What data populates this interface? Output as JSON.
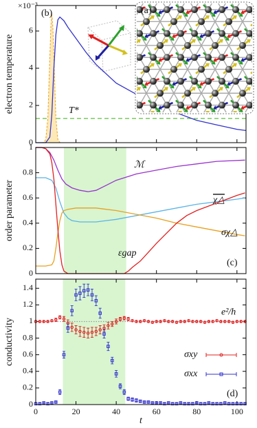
{
  "chart_data": [
    {
      "type": "line",
      "ylabel": "electron temperature",
      "multiplier": "×10⁻³",
      "panel_label": "(b)",
      "inset_label": "(a)",
      "xlim": [
        0,
        104.5
      ],
      "ylim": [
        0,
        7.37
      ],
      "yticks": [
        0,
        2,
        4,
        6
      ],
      "reference_lines": [
        {
          "label": "T*",
          "value": 1.3,
          "color": "#5cbf3c"
        }
      ],
      "series": [
        {
          "color": "#e8a020",
          "fill": "#fde9b8",
          "dashed": true,
          "x": [
            3,
            4,
            5,
            6,
            7,
            7.5,
            8,
            8.5,
            9,
            10,
            11,
            12,
            13
          ],
          "values": [
            0,
            0.01,
            0.17,
            1.32,
            4.57,
            6.23,
            6.9,
            6.23,
            4.57,
            1.32,
            0.17,
            0.01,
            0
          ]
        },
        {
          "color": "#3333cc",
          "x": [
            0,
            5,
            7,
            8,
            9,
            10,
            11,
            12,
            14,
            16,
            20,
            25,
            30,
            40,
            50,
            60,
            70,
            80,
            90,
            100,
            104.5
          ],
          "values": [
            0,
            0,
            0.3,
            1.5,
            4,
            5.8,
            6.6,
            6.75,
            6.55,
            6.2,
            5.6,
            4.85,
            4.2,
            3.2,
            2.6,
            2.1,
            1.6,
            1.2,
            0.95,
            0.72,
            0.65
          ]
        }
      ]
    },
    {
      "type": "line",
      "ylabel": "order parameter",
      "panel_label": "(c)",
      "xlim": [
        0,
        104.5
      ],
      "ylim": [
        0,
        1
      ],
      "yticks": [
        0,
        0.2,
        0.4,
        0.6,
        0.8,
        1
      ],
      "shade": [
        14,
        45
      ],
      "series": [
        {
          "name": "ℳ",
          "color": "#9933cc",
          "x": [
            0,
            3,
            5,
            7,
            9,
            11,
            13,
            15,
            18,
            22,
            26,
            30,
            35,
            40,
            50,
            60,
            70,
            80,
            90,
            104
          ],
          "values": [
            1,
            1,
            0.99,
            0.96,
            0.9,
            0.82,
            0.75,
            0.71,
            0.68,
            0.66,
            0.65,
            0.66,
            0.7,
            0.74,
            0.79,
            0.82,
            0.85,
            0.87,
            0.89,
            0.9
          ]
        },
        {
          "name": "χ△",
          "color": "#5ab4e6",
          "x": [
            0,
            5,
            8,
            10,
            12,
            14,
            16,
            18,
            22,
            26,
            30,
            35,
            40,
            50,
            60,
            70,
            80,
            90,
            100,
            104
          ],
          "values": [
            0.76,
            0.76,
            0.74,
            0.68,
            0.57,
            0.48,
            0.44,
            0.42,
            0.41,
            0.41,
            0.41,
            0.42,
            0.43,
            0.46,
            0.49,
            0.52,
            0.55,
            0.57,
            0.59,
            0.6
          ]
        },
        {
          "name": "σχ△",
          "color": "#e8a020",
          "x": [
            0,
            5,
            8,
            9,
            10,
            11,
            12,
            13,
            14,
            16,
            20,
            25,
            30,
            35,
            40,
            50,
            60,
            70,
            80,
            90,
            100,
            104
          ],
          "values": [
            0.06,
            0.06,
            0.07,
            0.1,
            0.2,
            0.32,
            0.42,
            0.48,
            0.5,
            0.51,
            0.52,
            0.52,
            0.52,
            0.51,
            0.5,
            0.47,
            0.44,
            0.4,
            0.37,
            0.34,
            0.31,
            0.3
          ]
        },
        {
          "name": "εgap",
          "color": "#e02020",
          "x": [
            0,
            3,
            5,
            7,
            8,
            9,
            10,
            11,
            12,
            13,
            14,
            16,
            44,
            46,
            48,
            52,
            56,
            60,
            65,
            70,
            75,
            80,
            85,
            90,
            95,
            100,
            104
          ],
          "values": [
            1,
            1,
            0.99,
            0.95,
            0.88,
            0.75,
            0.55,
            0.35,
            0.18,
            0.07,
            0.02,
            0,
            0,
            0.02,
            0.05,
            0.1,
            0.17,
            0.24,
            0.32,
            0.4,
            0.46,
            0.5,
            0.53,
            0.56,
            0.59,
            0.62,
            0.64
          ]
        }
      ]
    },
    {
      "type": "errorbar",
      "ylabel": "conductivity",
      "xlabel": "t",
      "panel_label": "(d)",
      "xlim": [
        0,
        104.5
      ],
      "ylim": [
        0,
        1.51
      ],
      "xticks": [
        0,
        20,
        40,
        60,
        80,
        100
      ],
      "yticks": [
        0,
        0.2,
        0.4,
        0.6,
        0.8,
        1,
        1.2,
        1.4
      ],
      "shade": [
        13.5,
        44.5
      ],
      "reference_lines": [
        {
          "label": "e²/h",
          "value": 1,
          "color": "#999999"
        }
      ],
      "x": [
        0,
        2,
        4,
        6,
        8,
        10,
        12,
        14,
        16,
        18,
        20,
        22,
        24,
        26,
        28,
        30,
        32,
        34,
        36,
        38,
        40,
        42,
        44,
        46,
        48,
        50,
        52,
        54,
        56,
        58,
        60,
        62,
        64,
        66,
        68,
        70,
        72,
        74,
        76,
        78,
        80,
        82,
        84,
        86,
        88,
        90,
        92,
        94,
        96,
        98,
        100,
        102,
        104
      ],
      "series": [
        {
          "name": "σxy",
          "color": "#e02020",
          "marker": "circle",
          "values": [
            1.0,
            1.0,
            1.0,
            1.0,
            1.01,
            1.02,
            1.05,
            1.03,
            0.98,
            0.93,
            0.9,
            0.88,
            0.87,
            0.86,
            0.87,
            0.88,
            0.9,
            0.92,
            0.95,
            0.97,
            1.0,
            1.03,
            1.04,
            1.03,
            1.01,
            1.0,
            1.0,
            1.01,
            1.0,
            0.99,
            1.0,
            1.0,
            1.01,
            1.0,
            1.0,
            0.99,
            1.0,
            1.0,
            1.01,
            1.0,
            1.0,
            1.0,
            0.99,
            1.0,
            1.0,
            1.01,
            1.0,
            1.0,
            1.0,
            0.99,
            1.0,
            1.0,
            1.0
          ],
          "errors": [
            0.01,
            0.01,
            0.01,
            0.01,
            0.01,
            0.02,
            0.02,
            0.03,
            0.04,
            0.05,
            0.05,
            0.06,
            0.06,
            0.06,
            0.06,
            0.05,
            0.05,
            0.04,
            0.04,
            0.03,
            0.03,
            0.02,
            0.02,
            0.02,
            0.01,
            0.01,
            0.01,
            0.01,
            0.01,
            0.01,
            0.01,
            0.01,
            0.01,
            0.01,
            0.01,
            0.01,
            0.01,
            0.01,
            0.01,
            0.01,
            0.01,
            0.01,
            0.01,
            0.01,
            0.01,
            0.01,
            0.01,
            0.01,
            0.01,
            0.01,
            0.01,
            0.01,
            0.01
          ]
        },
        {
          "name": "σxx",
          "color": "#3333cc",
          "marker": "square",
          "values": [
            0.01,
            0.01,
            0.02,
            0.01,
            0.02,
            0.03,
            0.15,
            0.6,
            0.92,
            1.13,
            1.32,
            1.34,
            1.37,
            1.38,
            1.32,
            1.25,
            1.1,
            0.85,
            0.7,
            0.53,
            0.37,
            0.22,
            0.15,
            0.07,
            0.06,
            0.05,
            0.04,
            0.03,
            0.03,
            0.02,
            0.02,
            0.02,
            0.01,
            0.02,
            0.01,
            0.01,
            0.02,
            0.01,
            0.01,
            0.01,
            0.02,
            0.01,
            0.01,
            0.02,
            0.01,
            0.01,
            0.01,
            0.02,
            0.01,
            0.01,
            0.01,
            0.01,
            0.01
          ],
          "errors": [
            0.01,
            0.01,
            0.01,
            0.01,
            0.01,
            0.01,
            0.03,
            0.04,
            0.05,
            0.06,
            0.07,
            0.08,
            0.08,
            0.07,
            0.07,
            0.06,
            0.06,
            0.05,
            0.05,
            0.04,
            0.04,
            0.03,
            0.03,
            0.02,
            0.02,
            0.02,
            0.01,
            0.01,
            0.01,
            0.01,
            0.01,
            0.01,
            0.01,
            0.01,
            0.01,
            0.01,
            0.01,
            0.01,
            0.01,
            0.01,
            0.01,
            0.01,
            0.01,
            0.01,
            0.01,
            0.01,
            0.01,
            0.01,
            0.01,
            0.01,
            0.01,
            0.01,
            0.01
          ]
        }
      ]
    }
  ]
}
